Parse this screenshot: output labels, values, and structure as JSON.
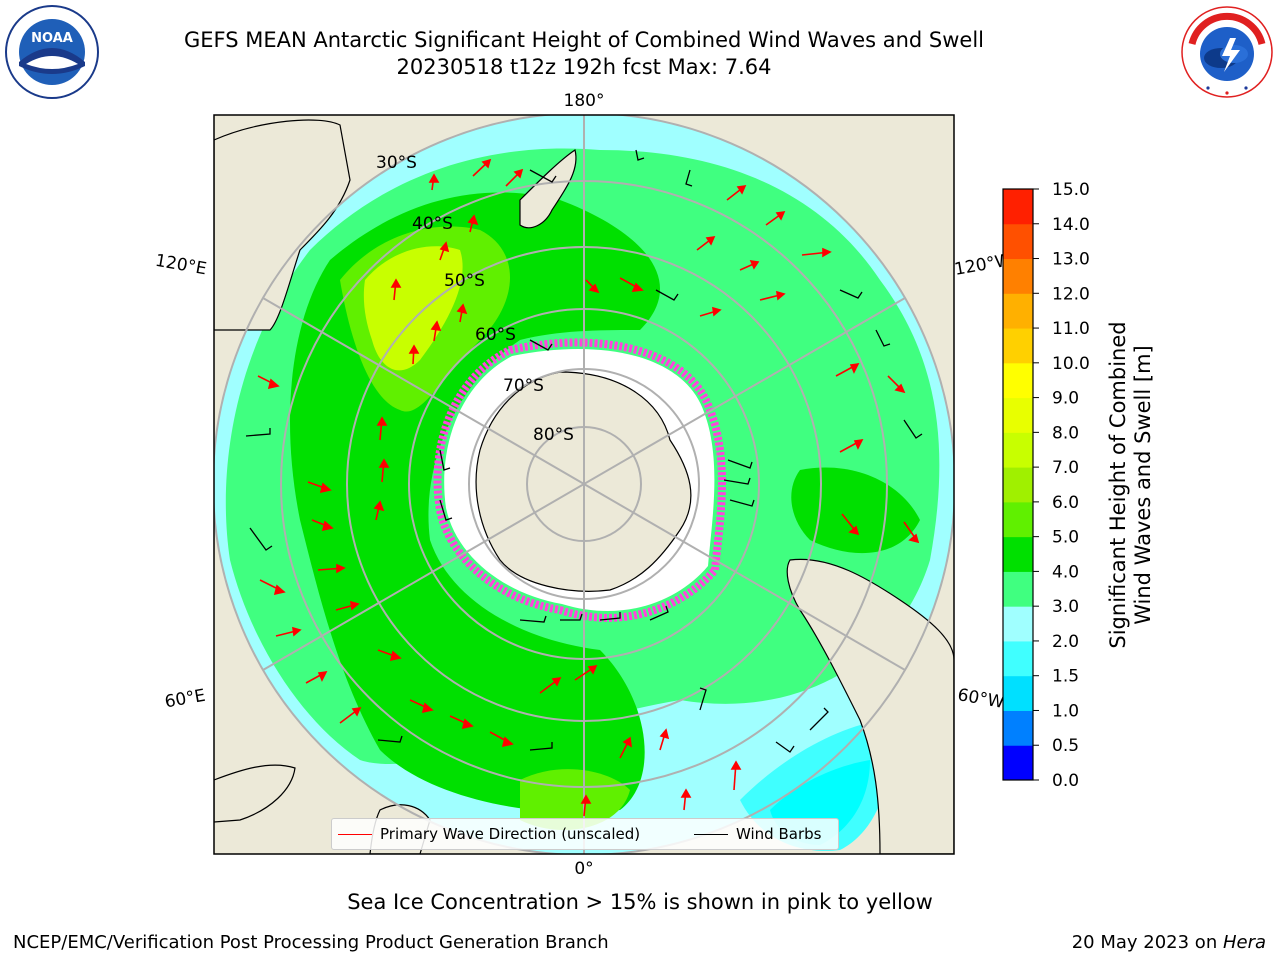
{
  "header": {
    "title_line1": "GEFS MEAN Antarctic Significant Height of Combined Wind Waves and Swell",
    "title_line2": "20230518 t12z 192h fcst   Max: 7.64"
  },
  "logos": {
    "noaa_text": "NOAA",
    "noaa_ring_text": "NATIONAL OCEANIC AND ATMOSPHERIC ADMINISTRATION · U.S. DEPARTMENT OF COMMERCE",
    "nws_ring_text": "NATIONAL WEATHER SERVICE"
  },
  "map": {
    "projection": "south-polar-stereographic",
    "longitude_labels": {
      "top": "180°",
      "bottom": "0°",
      "upper_left": "120°E",
      "upper_right": "120°W",
      "lower_left": "60°E",
      "lower_right": "60°W"
    },
    "latitude_labels": [
      "30°S",
      "40°S",
      "50°S",
      "60°S",
      "70°S",
      "80°S"
    ],
    "colors": {
      "land": "#ece9d8",
      "ocean_1_5": "#00ffff",
      "ocean_2": "#40ffff",
      "ocean_2_5": "#a0ffff",
      "ocean_3": "#40ff80",
      "ocean_4": "#00ff00",
      "ocean_5": "#60f000",
      "ocean_6": "#c0ff00",
      "grid": "#b0b0b0",
      "wave_arrow": "#ff0000",
      "wind_barb": "#000000",
      "sea_ice": "#ff44dd"
    }
  },
  "legend": {
    "primary_wave_label": "Primary Wave Direction (unscaled)",
    "wind_barbs_label": "Wind Barbs"
  },
  "colorbar": {
    "label_line1": "Significant Height of Combined",
    "label_line2": "Wind Waves and Swell [m]",
    "ticks": [
      "0.0",
      "0.5",
      "1.0",
      "1.5",
      "2.0",
      "3.0",
      "4.0",
      "5.0",
      "6.0",
      "7.0",
      "8.0",
      "9.0",
      "10.0",
      "11.0",
      "12.0",
      "13.0",
      "14.0",
      "15.0"
    ],
    "colors": [
      "#0000ff",
      "#0080ff",
      "#00e0ff",
      "#40ffff",
      "#a0ffff",
      "#40ff80",
      "#00e000",
      "#60f000",
      "#a0f000",
      "#c8ff00",
      "#e8ff00",
      "#ffff00",
      "#ffd000",
      "#ffb000",
      "#ff8000",
      "#ff5000",
      "#ff2000"
    ]
  },
  "footnote": "Sea Ice Concentration > 15% is shown in pink to yellow",
  "footer": {
    "left": "NCEP/EMC/Verification Post Processing Product Generation Branch",
    "right_prefix": "20 May 2023 on ",
    "right_host": "Hera"
  }
}
